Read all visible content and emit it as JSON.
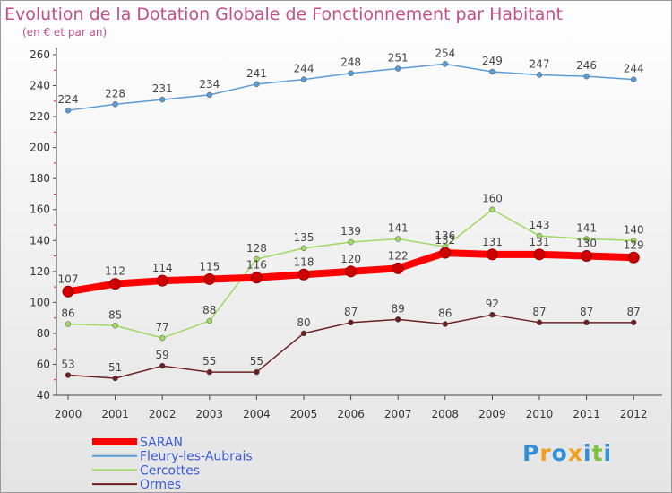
{
  "chart_data": {
    "type": "line",
    "title": "Evolution de la Dotation Globale de Fonctionnement par Habitant",
    "subtitle": "(en € et par an)",
    "xlabel": "",
    "ylabel": "",
    "ylim": [
      40,
      260
    ],
    "yticks": [
      40,
      60,
      80,
      100,
      120,
      140,
      160,
      180,
      200,
      220,
      240,
      260
    ],
    "categories": [
      "2000",
      "2001",
      "2002",
      "2003",
      "2004",
      "2005",
      "2006",
      "2007",
      "2008",
      "2009",
      "2010",
      "2011",
      "2012"
    ],
    "grid": false,
    "legend": "bottom-left",
    "series": [
      {
        "name": "SARAN",
        "color": "#ff0000",
        "values": [
          107,
          112,
          114,
          115,
          116,
          118,
          120,
          122,
          132,
          131,
          131,
          130,
          129
        ]
      },
      {
        "name": "Fleury-les-Aubrais",
        "color": "#5b9bd5",
        "values": [
          224,
          228,
          231,
          234,
          241,
          244,
          248,
          251,
          254,
          249,
          247,
          246,
          244
        ]
      },
      {
        "name": "Cercottes",
        "color": "#9fd862",
        "values": [
          86,
          85,
          77,
          88,
          128,
          135,
          139,
          141,
          136,
          160,
          143,
          141,
          140
        ]
      },
      {
        "name": "Ormes",
        "color": "#6b1f1f",
        "values": [
          53,
          51,
          59,
          55,
          55,
          80,
          87,
          89,
          86,
          92,
          87,
          87,
          87
        ]
      }
    ]
  },
  "logo": {
    "letters": [
      "P",
      "r",
      "o",
      "x",
      "i",
      "t",
      "i"
    ],
    "colors": [
      "#2f8fd8",
      "#f0a020",
      "#2f8fd8",
      "#f0a020",
      "#2f8fd8",
      "#80c040",
      "#2f8fd8"
    ]
  }
}
